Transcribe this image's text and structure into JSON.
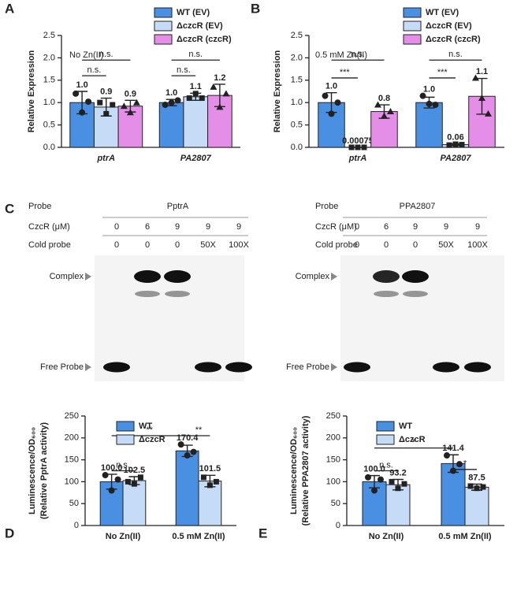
{
  "chart_data": [
    {
      "panel": "A",
      "type": "bar",
      "subtitle": "No Zn(II)",
      "ylabel": [
        "Relative Expression"
      ],
      "categories": [
        "ptrA",
        "PA2807"
      ],
      "category_italic": true,
      "ylim": [
        0,
        2.5
      ],
      "yticks": [
        {
          "value": 0,
          "label": "0.0"
        },
        0.5,
        {
          "value": 1,
          "label": "1.0"
        },
        1.5,
        {
          "value": 2,
          "label": "2.0"
        },
        2.5
      ],
      "legend": "top-right",
      "series": [
        {
          "name": "WT (EV)",
          "color": "#4a90e2",
          "marker": "circle",
          "values": [
            1.0,
            1.0
          ],
          "value_labels": [
            "1.0",
            "1.0"
          ],
          "errors": [
            0.25,
            0.07
          ],
          "points": [
            [
              1.2,
              0.78,
              1.02
            ],
            [
              0.95,
              1.0,
              1.05
            ]
          ]
        },
        {
          "name": "ΔczcR (EV)",
          "color": "#c6dbf5",
          "marker": "square",
          "values": [
            0.9,
            1.13
          ],
          "value_labels": [
            "0.9",
            "1.1"
          ],
          "errors": [
            0.2,
            0.08
          ],
          "points": [
            [
              1.0,
              0.75,
              0.95
            ],
            [
              1.1,
              1.2,
              1.1
            ]
          ]
        },
        {
          "name": "ΔczcR (czcR)",
          "color": "#e58ee8",
          "marker": "triangle",
          "values": [
            0.92,
            1.16
          ],
          "value_labels": [
            "0.9",
            "1.2"
          ],
          "errors": [
            0.13,
            0.25
          ],
          "points": [
            [
              0.92,
              0.78,
              1.0
            ],
            [
              1.35,
              0.9,
              1.2
            ]
          ]
        }
      ],
      "significance": [
        {
          "label": "n.s.",
          "from": [
            0,
            0
          ],
          "to": [
            0,
            2
          ],
          "y": 1.95
        },
        {
          "label": "n.s.",
          "from": [
            0,
            0
          ],
          "to": [
            0,
            1
          ],
          "y": 1.6
        },
        {
          "label": "n.s.",
          "from": [
            1,
            0
          ],
          "to": [
            1,
            2
          ],
          "y": 1.95
        },
        {
          "label": "n.s.",
          "from": [
            1,
            0
          ],
          "to": [
            1,
            1
          ],
          "y": 1.6
        }
      ]
    },
    {
      "panel": "B",
      "type": "bar",
      "subtitle": "0.5 mM Zn(II)",
      "ylabel": [
        "Relative Expression"
      ],
      "categories": [
        "ptrA",
        "PA2807"
      ],
      "category_italic": true,
      "ylim": [
        0,
        2.5
      ],
      "yticks": [
        {
          "value": 0,
          "label": "0.0"
        },
        0.5,
        {
          "value": 1,
          "label": "1.0"
        },
        1.5,
        {
          "value": 2,
          "label": "2.0"
        },
        2.5
      ],
      "legend": "top-right",
      "series": [
        {
          "name": "WT (EV)",
          "color": "#4a90e2",
          "marker": "circle",
          "values": [
            1.0,
            1.0
          ],
          "value_labels": [
            "1.0",
            "1.0"
          ],
          "errors": [
            0.22,
            0.12
          ],
          "points": [
            [
              1.15,
              0.75,
              1.0
            ],
            [
              1.15,
              0.97,
              0.95
            ]
          ]
        },
        {
          "name": "ΔczcR (EV)",
          "color": "#c6dbf5",
          "marker": "square",
          "values": [
            0.00075,
            0.06
          ],
          "value_labels": [
            "0.00075",
            "0.06"
          ],
          "errors": [
            0.001,
            0.02
          ],
          "points": [
            [
              0,
              0,
              0
            ],
            [
              0.05,
              0.07,
              0.06
            ]
          ]
        },
        {
          "name": "ΔczcR (czcR)",
          "color": "#e58ee8",
          "marker": "triangle",
          "values": [
            0.8,
            1.14
          ],
          "value_labels": [
            "0.8",
            "1.1"
          ],
          "errors": [
            0.15,
            0.4
          ],
          "points": [
            [
              0.95,
              0.7,
              0.8
            ],
            [
              1.55,
              1.1,
              0.75
            ]
          ]
        }
      ],
      "significance": [
        {
          "label": "n.s.",
          "from": [
            0,
            0
          ],
          "to": [
            0,
            2
          ],
          "y": 1.95
        },
        {
          "label": "***",
          "from": [
            0,
            0
          ],
          "to": [
            0,
            1
          ],
          "y": 1.55
        },
        {
          "label": "n.s.",
          "from": [
            1,
            0
          ],
          "to": [
            1,
            2
          ],
          "y": 1.95
        },
        {
          "label": "***",
          "from": [
            1,
            0
          ],
          "to": [
            1,
            1
          ],
          "y": 1.55
        }
      ]
    },
    {
      "panel": "D",
      "type": "bar",
      "ylabel": [
        "Luminescence/OD₆₀₀",
        "(Relative PptrA activity)"
      ],
      "categories": [
        "No Zn(II)",
        "0.5 mM Zn(II)"
      ],
      "category_italic": false,
      "ylim": [
        0,
        250
      ],
      "yticks": [
        0,
        50,
        100,
        150,
        200,
        250
      ],
      "legend": "top-left",
      "series": [
        {
          "name": "WT",
          "color": "#4a90e2",
          "marker": "circle",
          "values": [
            100.0,
            170.4
          ],
          "value_labels": [
            "100.0",
            "170.4"
          ],
          "errors": [
            17,
            13
          ],
          "points": [
            [
              115,
              80,
              105
            ],
            [
              185,
              160,
              168
            ]
          ]
        },
        {
          "name": "ΔczcR",
          "color": "#c6dbf5",
          "marker": "square",
          "values": [
            102.5,
            101.5
          ],
          "value_labels": [
            "102.5",
            "101.5"
          ],
          "errors": [
            9,
            13
          ],
          "points": [
            [
              100,
              95,
              110
            ],
            [
              110,
              92,
              100
            ]
          ]
        }
      ],
      "significance": [
        {
          "label": "n.s.",
          "from": [
            0,
            0
          ],
          "to": [
            0,
            1
          ],
          "y": 125
        },
        {
          "label": "**",
          "from": [
            0,
            0
          ],
          "to": [
            1,
            0
          ],
          "y": 205
        },
        {
          "label": "**",
          "from": [
            1,
            0
          ],
          "to": [
            1,
            1
          ],
          "y": 205
        }
      ]
    },
    {
      "panel": "E",
      "type": "bar",
      "ylabel": [
        "Luminescence/OD₆₀₀",
        "(Relative PPA2807 activity)"
      ],
      "categories": [
        "No Zn(II)",
        "0.5 mM Zn(II)"
      ],
      "category_italic": false,
      "ylim": [
        0,
        250
      ],
      "yticks": [
        0,
        50,
        100,
        150,
        200,
        250
      ],
      "legend": "top-left",
      "series": [
        {
          "name": "WT",
          "color": "#4a90e2",
          "marker": "circle",
          "values": [
            100.0,
            141.4
          ],
          "value_labels": [
            "100.0",
            "141.4"
          ],
          "errors": [
            14,
            20
          ],
          "points": [
            [
              110,
              80,
              105
            ],
            [
              160,
              125,
              140
            ]
          ]
        },
        {
          "name": "ΔczcR",
          "color": "#c6dbf5",
          "marker": "square",
          "values": [
            93.2,
            87.5
          ],
          "value_labels": [
            "93.2",
            "87.5"
          ],
          "errors": [
            12,
            7
          ],
          "points": [
            [
              100,
              85,
              95
            ],
            [
              90,
              85,
              88
            ]
          ]
        }
      ],
      "significance": [
        {
          "label": "n.s.",
          "from": [
            0,
            0
          ],
          "to": [
            0,
            1
          ],
          "y": 125
        },
        {
          "label": "*",
          "from": [
            0,
            0
          ],
          "to": [
            1,
            0
          ],
          "y": 177
        },
        {
          "label": "*",
          "from": [
            1,
            0
          ],
          "to": [
            1,
            1
          ],
          "y": 128
        }
      ]
    }
  ],
  "gel_panel": {
    "panel": "C",
    "complex_label": "Complex",
    "free_label": "Free Probe",
    "gels": [
      {
        "probe_label": "Probe",
        "probe": "PptrA",
        "czcr_label": "CzcR (μM)",
        "czcr": [
          "0",
          "6",
          "9",
          "9",
          "9"
        ],
        "cold_label": "Cold probe",
        "cold": [
          "0",
          "0",
          "0",
          "50X",
          "100X"
        ]
      },
      {
        "probe_label": "Probe",
        "probe": "PPA2807",
        "czcr_label": "CzcR (μM)",
        "czcr": [
          "0",
          "6",
          "9",
          "9",
          "9"
        ],
        "cold_label": "Cold probe",
        "cold": [
          "0",
          "0",
          "0",
          "50X",
          "100X"
        ]
      }
    ]
  }
}
